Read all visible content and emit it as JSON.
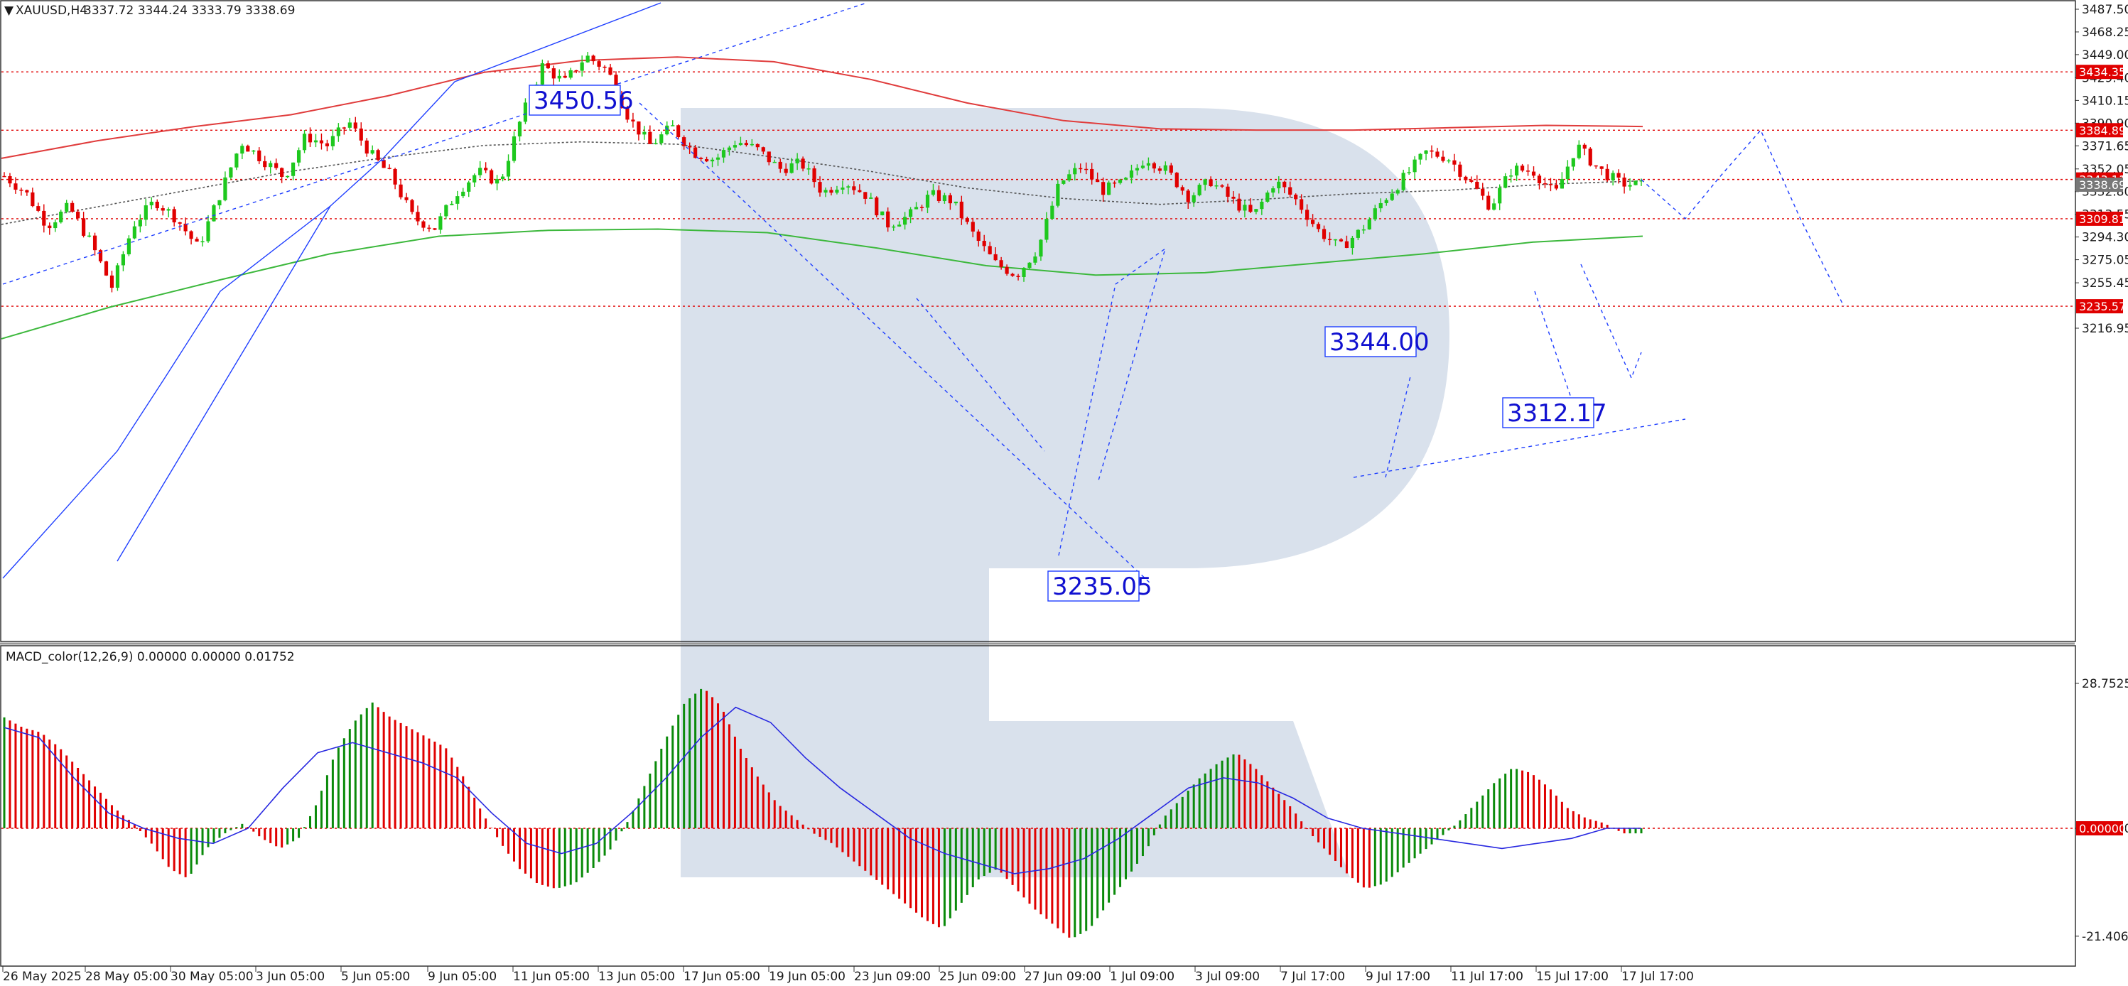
{
  "header": {
    "symbol": "XAUUSD,H4",
    "ohlc": "3337.72 3344.24 3333.79 3338.69",
    "macd_label": "MACD_color(12,26,9) 0.00000 0.00000 0.01752"
  },
  "colors": {
    "bull": "#0a8a0a",
    "bear": "#e00000",
    "ma_red": "#e03c3c",
    "ma_green": "#3cb83c",
    "ma_grey": "#555555",
    "level_line": "#e00000",
    "forecast": "#1f3fff",
    "badge_red": "#e00000",
    "badge_grey": "#777777",
    "watermark": "#d5deea"
  },
  "chart_data": [
    {
      "type": "candlestick",
      "title": "XAUUSD,H4",
      "ylim": [
        3207,
        3497
      ],
      "y_ticks": [
        3487.5,
        3468.25,
        3449.0,
        3429.4,
        3410.15,
        3390.9,
        3371.65,
        3352.05,
        3332.8,
        3313.55,
        3294.3,
        3275.05,
        3255.45,
        3216.95
      ],
      "x_ticks": [
        "26 May 2025",
        "28 May 05:00",
        "30 May 05:00",
        "3 Jun 05:00",
        "5 Jun 05:00",
        "9 Jun 05:00",
        "11 Jun 05:00",
        "13 Jun 05:00",
        "17 Jun 05:00",
        "19 Jun 05:00",
        "23 Jun 09:00",
        "25 Jun 09:00",
        "27 Jun 09:00",
        "1 Jul 09:00",
        "3 Jul 09:00",
        "7 Jul 17:00",
        "9 Jul 17:00",
        "11 Jul 17:00",
        "15 Jul 17:00",
        "17 Jul 17:00"
      ],
      "close_path": [
        3346,
        3332,
        3304,
        3320,
        3290,
        3252,
        3305,
        3325,
        3310,
        3285,
        3330,
        3375,
        3360,
        3345,
        3380,
        3372,
        3392,
        3365,
        3345,
        3310,
        3302,
        3332,
        3350,
        3340,
        3395,
        3440,
        3425,
        3448,
        3436,
        3395,
        3372,
        3388,
        3366,
        3360,
        3376,
        3368,
        3352,
        3357,
        3332,
        3342,
        3330,
        3305,
        3312,
        3330,
        3325,
        3296,
        3272,
        3262,
        3285,
        3340,
        3354,
        3334,
        3340,
        3362,
        3350,
        3328,
        3342,
        3325,
        3312,
        3342,
        3325,
        3300,
        3285,
        3300,
        3325,
        3345,
        3366,
        3362,
        3342,
        3320,
        3352,
        3350,
        3330,
        3372,
        3352,
        3340,
        3338
      ],
      "levels": [
        {
          "value": "3434.35"
        },
        {
          "value": "3384.89"
        },
        {
          "value": "3343.11"
        },
        {
          "value": "3309.81"
        },
        {
          "value": "3235.57"
        }
      ],
      "current_price": "3338.69",
      "annotations": [
        {
          "text": "3450.56"
        },
        {
          "text": "3344.00"
        },
        {
          "text": "3312.17"
        },
        {
          "text": "3235.05"
        }
      ],
      "moving_averages": [
        {
          "color": "red",
          "values": [
            3361,
            3376,
            3388,
            3398,
            3414,
            3434,
            3444,
            3447,
            3443,
            3428,
            3408,
            3393,
            3386,
            3385,
            3385,
            3387,
            3389,
            3388
          ]
        },
        {
          "color": "grey-dotted",
          "values": [
            3305,
            3320,
            3335,
            3350,
            3362,
            3372,
            3375,
            3373,
            3362,
            3350,
            3336,
            3327,
            3322,
            3326,
            3331,
            3334,
            3339,
            3342
          ]
        },
        {
          "color": "green",
          "values": [
            3208,
            3235,
            3258,
            3280,
            3295,
            3300,
            3301,
            3298,
            3285,
            3270,
            3262,
            3264,
            3272,
            3280,
            3290,
            3295
          ]
        }
      ],
      "forecast_path": [
        3309.81,
        3343,
        3384.89,
        3309.81,
        3235.57
      ]
    },
    {
      "type": "bar",
      "title": "MACD_color(12,26,9) 0.00000 0.00000 0.01752",
      "ylim": [
        -21.40694,
        28.7525
      ],
      "y_ticks": [
        "28.7525",
        "0.00000",
        "-21.40694"
      ],
      "histogram_path": [
        22,
        20,
        19,
        16,
        12,
        8,
        4,
        1,
        -3,
        -8,
        -10,
        -4,
        -1,
        1,
        -2,
        -4,
        -2,
        5,
        15,
        21,
        25,
        22,
        20,
        18,
        16,
        10,
        3,
        -3,
        -8,
        -11,
        -12,
        -11,
        -8,
        -4,
        2,
        10,
        18,
        25,
        28,
        24,
        16,
        10,
        5,
        2,
        -1,
        -3,
        -6,
        -9,
        -12,
        -15,
        -18,
        -20,
        -15,
        -10,
        -8,
        -12,
        -16,
        -19,
        -22,
        -20,
        -15,
        -10,
        -5,
        2,
        6,
        10,
        13,
        15,
        12,
        8,
        4,
        -1,
        -5,
        -9,
        -12,
        -11,
        -8,
        -5,
        -2,
        1,
        5,
        9,
        12,
        11,
        8,
        4,
        2,
        1,
        -1,
        -1
      ],
      "signal_path": [
        20,
        18,
        10,
        3,
        0,
        -2,
        -3,
        0,
        8,
        15,
        17,
        15,
        13,
        10,
        3,
        -3,
        -5,
        -3,
        3,
        10,
        18,
        24,
        21,
        14,
        8,
        3,
        -2,
        -5,
        -7,
        -9,
        -8,
        -6,
        -2,
        3,
        8,
        10,
        9,
        6,
        2,
        0,
        -1,
        -2,
        -3,
        -4,
        -3,
        -2,
        0,
        0
      ]
    }
  ]
}
